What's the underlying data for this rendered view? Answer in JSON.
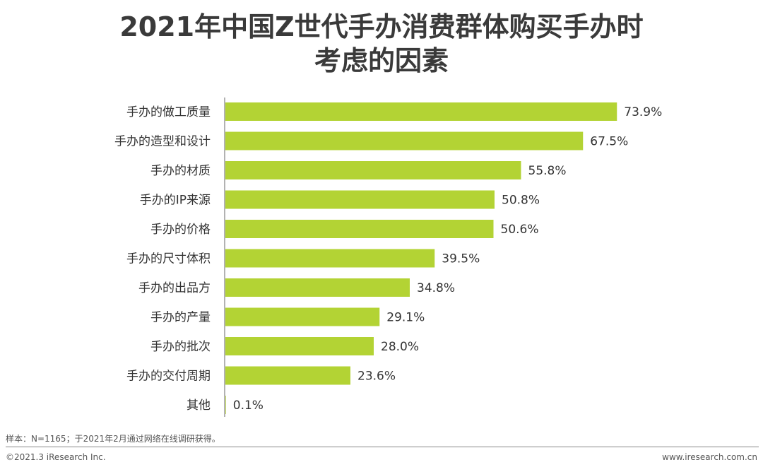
{
  "title": {
    "line1": "2021年中国Z世代手办消费群体购买手办时",
    "line2": "考虑的因素"
  },
  "colors": {
    "bar": "#b3d334",
    "axis": "#666666",
    "label": "#333333"
  },
  "chart_data": {
    "type": "bar",
    "orientation": "horizontal",
    "title": "2021年中国Z世代手办消费群体购买手办时考虑的因素",
    "categories": [
      "手办的做工质量",
      "手办的造型和设计",
      "手办的材质",
      "手办的IP来源",
      "手办的价格",
      "手办的尺寸体积",
      "手办的出品方",
      "手办的产量",
      "手办的批次",
      "手办的交付周期",
      "其他"
    ],
    "values": [
      73.9,
      67.5,
      55.8,
      50.8,
      50.6,
      39.5,
      34.8,
      29.1,
      28.0,
      23.6,
      0.1
    ],
    "value_labels": [
      "73.9%",
      "67.5%",
      "55.8%",
      "50.8%",
      "50.6%",
      "39.5%",
      "34.8%",
      "29.1%",
      "28.0%",
      "23.6%",
      "0.1%"
    ],
    "unit": "%",
    "xlim": [
      0,
      100
    ],
    "xlabel": "",
    "ylabel": "",
    "grid": false,
    "legend": "none"
  },
  "footer": {
    "note": "样本：N=1165；于2021年2月通过网络在线调研获得。",
    "copyright": "©2021.3 iResearch Inc.",
    "website": "www.iresearch.com.cn"
  }
}
